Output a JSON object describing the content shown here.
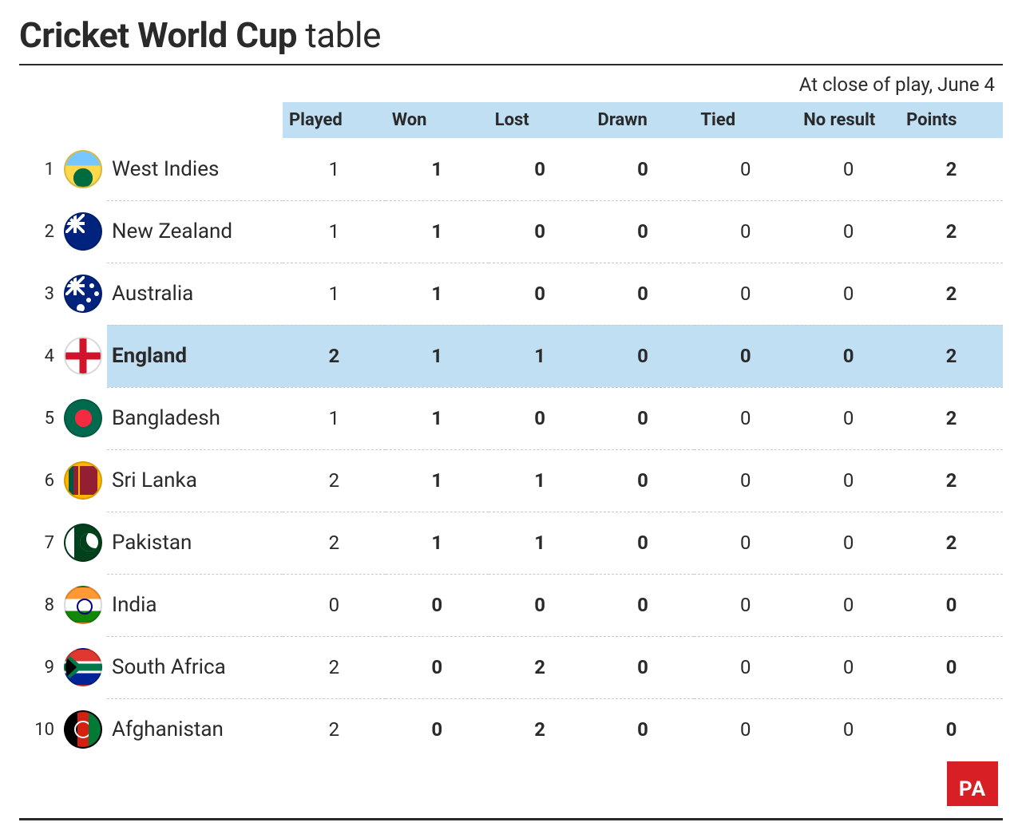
{
  "title_bold": "Cricket World Cup",
  "title_rest": " table",
  "subtitle": "At close of play, June 4",
  "columns": [
    "Played",
    "Won",
    "Lost",
    "Drawn",
    "Tied",
    "No result",
    "Points"
  ],
  "bold_cols": [
    false,
    true,
    true,
    true,
    false,
    false,
    true
  ],
  "header_bg": "#c1dff2",
  "highlight_bg": "#c1dff2",
  "divider_color": "#c9c9c9",
  "rule_color": "#2a2a2a",
  "badge": {
    "text": "PA",
    "bg": "#d91f26",
    "fg": "#ffffff"
  },
  "rows": [
    {
      "rank": 1,
      "team": "West Indies",
      "flag": "fl-wi",
      "highlight": false,
      "values": [
        1,
        1,
        0,
        0,
        0,
        0,
        2
      ]
    },
    {
      "rank": 2,
      "team": "New Zealand",
      "flag": "fl-nz",
      "highlight": false,
      "values": [
        1,
        1,
        0,
        0,
        0,
        0,
        2
      ]
    },
    {
      "rank": 3,
      "team": "Australia",
      "flag": "fl-au",
      "highlight": false,
      "values": [
        1,
        1,
        0,
        0,
        0,
        0,
        2
      ]
    },
    {
      "rank": 4,
      "team": "England",
      "flag": "fl-en",
      "highlight": true,
      "values": [
        2,
        1,
        1,
        0,
        0,
        0,
        2
      ]
    },
    {
      "rank": 5,
      "team": "Bangladesh",
      "flag": "fl-bd",
      "highlight": false,
      "values": [
        1,
        1,
        0,
        0,
        0,
        0,
        2
      ]
    },
    {
      "rank": 6,
      "team": "Sri Lanka",
      "flag": "fl-lk",
      "highlight": false,
      "values": [
        2,
        1,
        1,
        0,
        0,
        0,
        2
      ]
    },
    {
      "rank": 7,
      "team": "Pakistan",
      "flag": "fl-pk",
      "highlight": false,
      "values": [
        2,
        1,
        1,
        0,
        0,
        0,
        2
      ]
    },
    {
      "rank": 8,
      "team": "India",
      "flag": "fl-in",
      "highlight": false,
      "values": [
        0,
        0,
        0,
        0,
        0,
        0,
        0
      ]
    },
    {
      "rank": 9,
      "team": "South Africa",
      "flag": "fl-za",
      "highlight": false,
      "values": [
        2,
        0,
        2,
        0,
        0,
        0,
        0
      ]
    },
    {
      "rank": 10,
      "team": "Afghanistan",
      "flag": "fl-af",
      "highlight": false,
      "values": [
        2,
        0,
        2,
        0,
        0,
        0,
        0
      ]
    }
  ]
}
